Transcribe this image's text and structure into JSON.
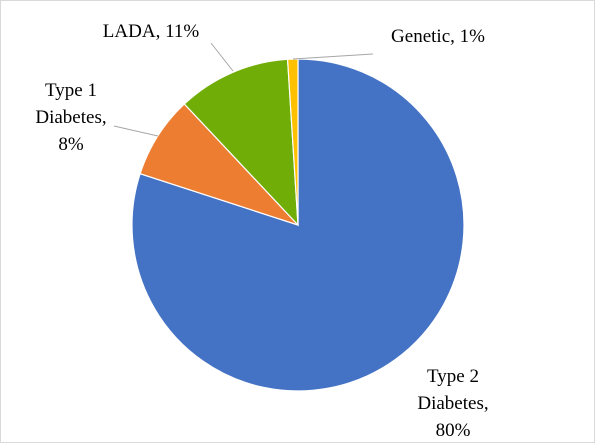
{
  "chart_data": {
    "type": "pie",
    "title": "",
    "slices": [
      {
        "label": "Type 2 Diabetes",
        "value": 80,
        "display": [
          "Type 2",
          "Diabetes,",
          "80%"
        ],
        "color": "#4472c4"
      },
      {
        "label": "Type 1 Diabetes",
        "value": 8,
        "display": [
          "Type 1",
          "Diabetes,",
          "8%"
        ],
        "color": "#ed7d31"
      },
      {
        "label": "LADA",
        "value": 11,
        "display": [
          "LADA, 11%"
        ],
        "color": "#70ad07"
      },
      {
        "label": "Genetic",
        "value": 1,
        "display": [
          "Genetic, 1%"
        ],
        "color": "#ffc000"
      }
    ],
    "start_angle": "12 o'clock",
    "direction": "clockwise",
    "legend": "none",
    "leader_line_color": "#a6a6a6"
  }
}
